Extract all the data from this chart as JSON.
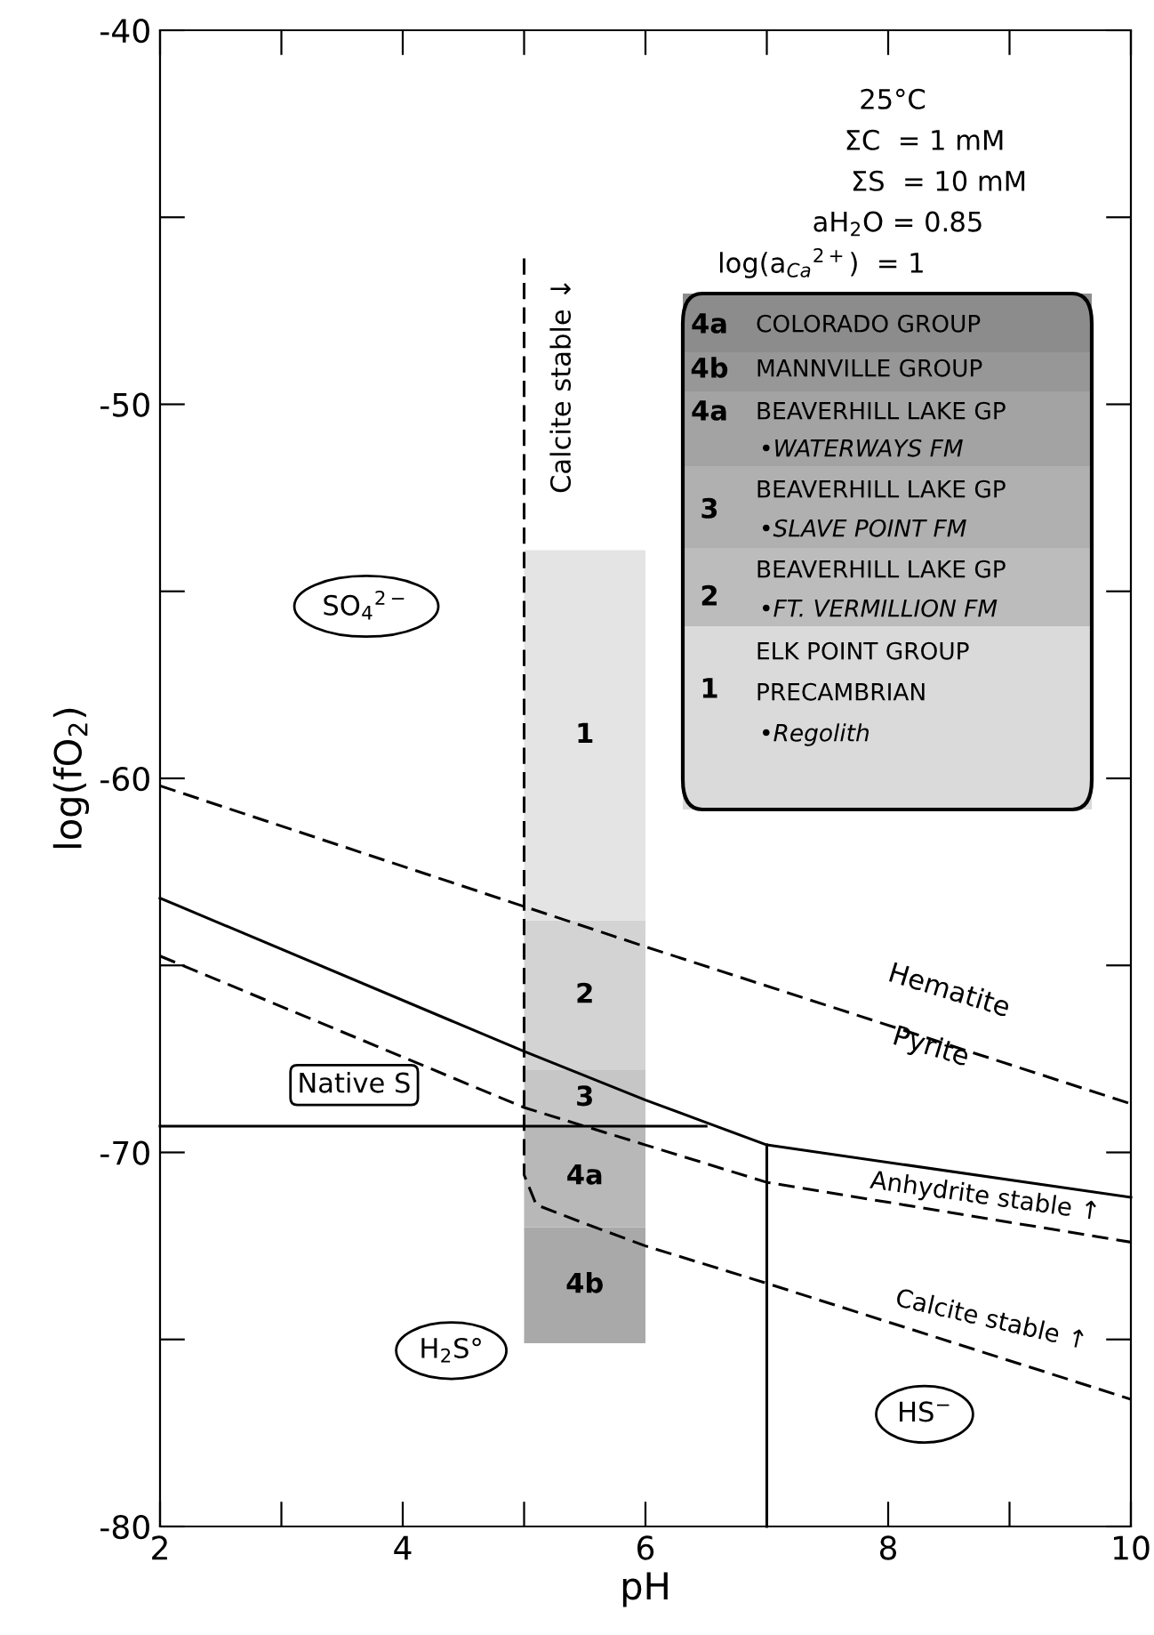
{
  "chart_data": {
    "type": "line",
    "xlabel": "pH",
    "ylabel": "log(fO$_{2}$)",
    "xlim": [
      2,
      10
    ],
    "ylim": [
      -80,
      -40
    ],
    "xticks": [
      2,
      {
        "value": 3,
        "label": null
      },
      4,
      {
        "value": 5,
        "label": null
      },
      6,
      {
        "value": 7,
        "label": null
      },
      8,
      {
        "value": 9,
        "label": null
      },
      10
    ],
    "yticks": [
      -80,
      {
        "value": -75,
        "label": null
      },
      -70,
      {
        "value": -65,
        "label": null
      },
      -60,
      {
        "value": -55,
        "label": null
      },
      -50,
      {
        "value": -45,
        "label": null
      },
      -40
    ],
    "series": [
      {
        "type": "bar",
        "name": "4b",
        "color": "#a9a9a9",
        "x": [
          5.5
        ],
        "base": [
          -75.1
        ],
        "values": [
          3.1
        ]
      },
      {
        "type": "bar",
        "name": "4a",
        "color": "#b8b8b8",
        "x": [
          5.5
        ],
        "base": [
          -72.0
        ],
        "values": [
          2.7
        ]
      },
      {
        "type": "bar",
        "name": "3",
        "color": "#c6c6c6",
        "x": [
          5.5
        ],
        "base": [
          -69.3
        ],
        "values": [
          1.5
        ]
      },
      {
        "type": "bar",
        "name": "2",
        "color": "#d3d3d3",
        "x": [
          5.5
        ],
        "base": [
          -67.8
        ],
        "values": [
          4.0
        ]
      },
      {
        "type": "bar",
        "name": "1",
        "color": "#e4e4e4",
        "x": [
          5.5
        ],
        "base": [
          -63.8
        ],
        "values": [
          9.9
        ]
      },
      {
        "color": "#000000",
        "line_style": "dashed",
        "x": [
          2,
          6,
          10
        ],
        "values": [
          -60.2,
          -64.5,
          -68.7
        ]
      },
      {
        "color": "#000000",
        "line_style": "solid",
        "x": [
          2,
          5,
          6,
          6.5,
          7,
          10
        ],
        "values": [
          -63.2,
          -67.3,
          -68.6,
          -69.2,
          -69.8,
          -71.2
        ]
      },
      {
        "color": "#000000",
        "line_style": "solid",
        "x": [
          2,
          6.5
        ],
        "values": [
          -69.3,
          -69.3
        ]
      },
      {
        "color": "#000000",
        "line_style": "solid",
        "x": [
          7,
          7,
          7
        ],
        "values": [
          -80,
          -75,
          -69.8
        ]
      },
      {
        "color": "#000000",
        "line_style": "dashed",
        "x": [
          2,
          5,
          6,
          7,
          10
        ],
        "values": [
          -64.75,
          -68.8,
          -69.8,
          -70.8,
          -72.4
        ]
      },
      {
        "color": "#000000",
        "line_style": "dashed",
        "x": [
          5,
          5,
          5.1,
          5.5,
          6,
          7,
          10
        ],
        "values": [
          -46.1,
          -70.6,
          -71.4,
          -71.9,
          -72.5,
          -73.5,
          -76.6
        ]
      }
    ],
    "annotations": [
      "25°C",
      "ΣC  = 1 mM",
      "ΣS  = 10 mM",
      "aH$_{2}$O = 0.85",
      "log(a$_{Ca}$$^{2+}$)  = 1",
      "4a",
      "COLORADO GROUP",
      "4b",
      "MANNVILLE GROUP",
      "4a",
      "BEAVERHILL LAKE GP",
      "•WATERWAYS FM",
      "3",
      "BEAVERHILL LAKE GP",
      "•SLAVE POINT FM",
      "2",
      "BEAVERHILL LAKE GP",
      "•FT. VERMILLION FM",
      "1",
      "ELK POINT GROUP",
      "PRECAMBRIAN",
      "•Regolith",
      "SO$_{4}$$^{2−}$",
      "Native S",
      "H$_{2}$S°",
      "HS$^{−}$",
      "Calcite stable ↓",
      "Hematite",
      "Pyrite",
      "Anhydrite stable ↑",
      "Calcite stable ↑"
    ]
  }
}
